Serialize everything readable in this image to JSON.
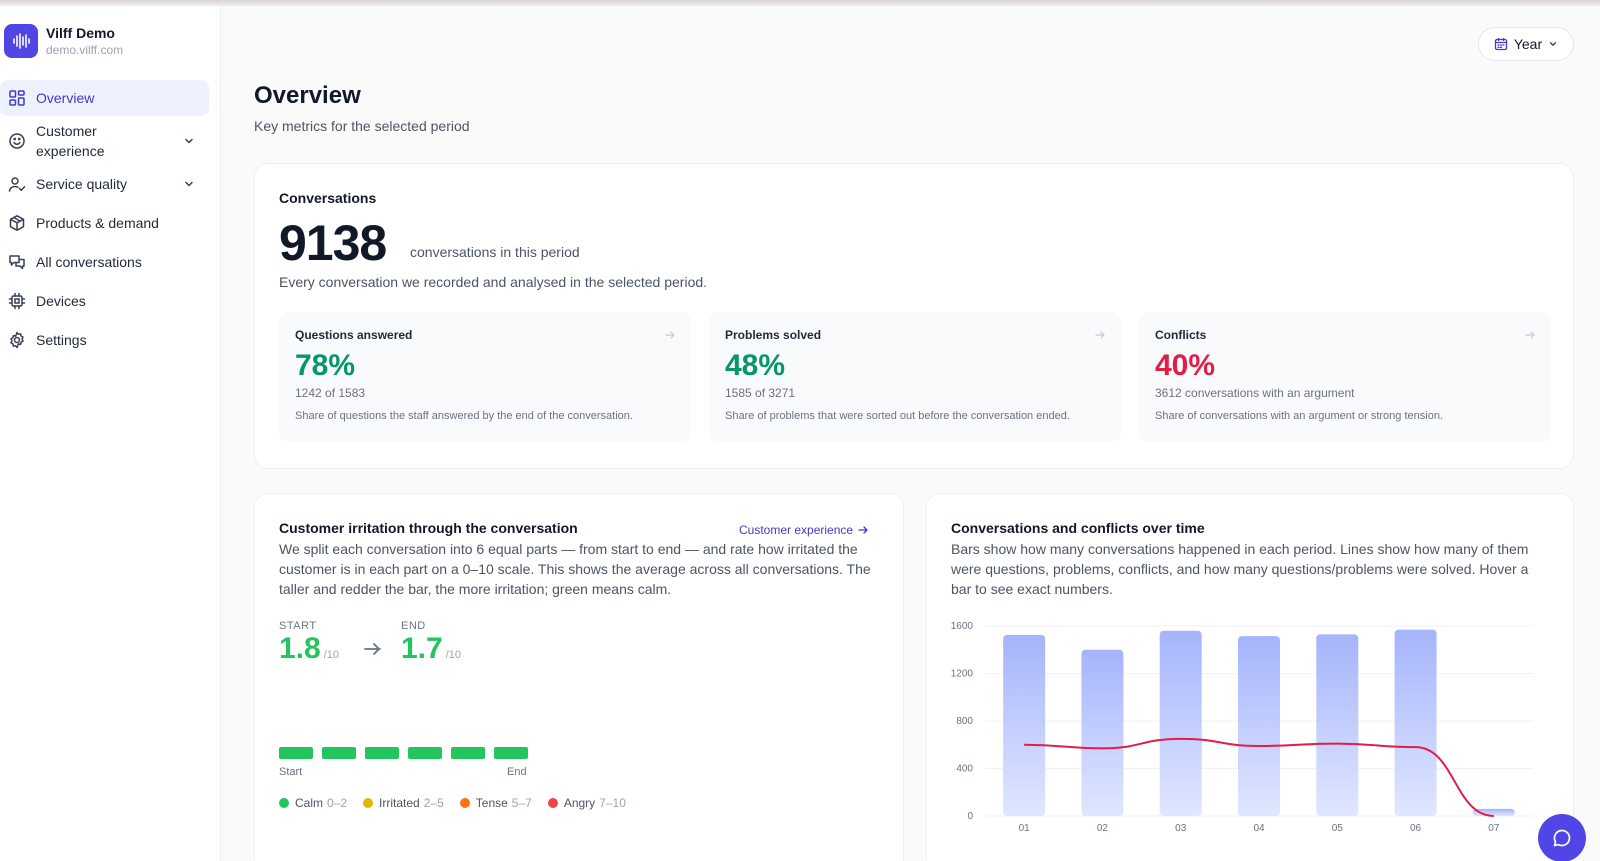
{
  "brand": {
    "name": "Vilff Demo",
    "domain": "demo.vilff.com"
  },
  "sidebar": {
    "items": [
      {
        "label": "Overview",
        "icon": "grid-icon",
        "active": true
      },
      {
        "label": "Customer experience",
        "icon": "smile-icon",
        "expandable": true
      },
      {
        "label": "Service quality",
        "icon": "user-check-icon",
        "expandable": true
      },
      {
        "label": "Products & demand",
        "icon": "box-icon"
      },
      {
        "label": "All conversations",
        "icon": "chat-bubbles-icon"
      },
      {
        "label": "Devices",
        "icon": "chip-icon"
      },
      {
        "label": "Settings",
        "icon": "gear-icon"
      }
    ]
  },
  "period_selector": {
    "label": "Year"
  },
  "page": {
    "title": "Overview",
    "subtitle": "Key metrics for the selected period"
  },
  "conversations": {
    "title": "Conversations",
    "count": "9138",
    "count_suffix": "conversations in this period",
    "description": "Every conversation we recorded and analysed in the selected period.",
    "metrics": [
      {
        "title": "Questions answered",
        "value": "78%",
        "sub": "1242 of 1583",
        "desc": "Share of questions the staff answered by the end of the conversation.",
        "color": "#059669"
      },
      {
        "title": "Problems solved",
        "value": "48%",
        "sub": "1585 of 3271",
        "desc": "Share of problems that were sorted out before the conversation ended.",
        "color": "#059669"
      },
      {
        "title": "Conflicts",
        "value": "40%",
        "sub": "3612 conversations with an argument",
        "desc": "Share of conversations with an argument or strong tension.",
        "color": "#e11d48"
      }
    ]
  },
  "irritation": {
    "title": "Customer irritation through the conversation",
    "link": "Customer experience",
    "description": "We split each conversation into 6 equal parts — from start to end — and rate how irritated the customer is in each part on a 0–10 scale. This shows the average across all conversations. The taller and redder the bar, the more irritation; green means calm.",
    "start_label": "START",
    "start_value": "1.8",
    "end_label": "END",
    "end_value": "1.7",
    "unit": "/10",
    "axis_start": "Start",
    "axis_end": "End",
    "legend": [
      {
        "label": "Calm",
        "range": "0–2",
        "color": "#22c55e"
      },
      {
        "label": "Irritated",
        "range": "2–5",
        "color": "#eab308"
      },
      {
        "label": "Tense",
        "range": "5–7",
        "color": "#f97316"
      },
      {
        "label": "Angry",
        "range": "7–10",
        "color": "#ef4444"
      }
    ]
  },
  "chart_data": {
    "type": "bar",
    "title": "Conversations and conflicts over time",
    "description": "Bars show how many conversations happened in each period. Lines show how many of them were questions, problems, conflicts, and how many questions/problems were solved. Hover a bar to see exact numbers.",
    "categories": [
      "01",
      "02",
      "03",
      "04",
      "05",
      "06",
      "07"
    ],
    "ylim": [
      0,
      1600
    ],
    "yticks": [
      0,
      400,
      800,
      1200,
      1600
    ],
    "grid": true,
    "series": [
      {
        "type": "bar",
        "values": [
          1525,
          1400,
          1560,
          1515,
          1530,
          1570,
          60
        ],
        "color": "#a5b4fc"
      },
      {
        "type": "line",
        "values": [
          600,
          570,
          650,
          590,
          610,
          580,
          0
        ],
        "color": "#e11d48"
      }
    ]
  }
}
